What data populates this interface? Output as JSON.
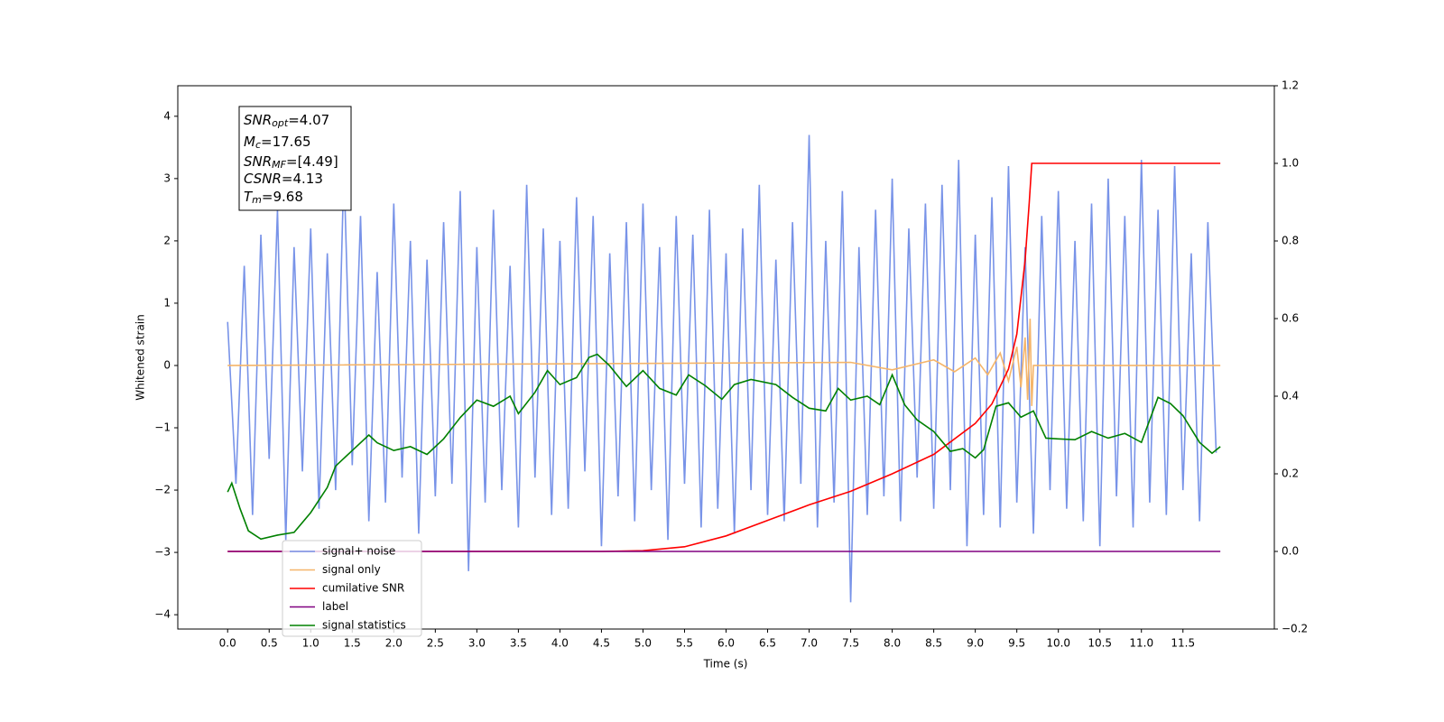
{
  "chart_data": {
    "type": "line",
    "xlabel": "Time (s)",
    "ylabel": "Whitened strain",
    "xlim": [
      -0.6,
      12.6
    ],
    "ylim": [
      -4.23,
      4.49
    ],
    "y2lim": [
      -0.2,
      1.2
    ],
    "xticks": [
      {
        "value": 0,
        "label": "0.0"
      },
      0.5,
      {
        "value": 1,
        "label": "1.0"
      },
      1.5,
      {
        "value": 2,
        "label": "2.0"
      },
      2.5,
      {
        "value": 3,
        "label": "3.0"
      },
      3.5,
      {
        "value": 4,
        "label": "4.0"
      },
      4.5,
      {
        "value": 5,
        "label": "5.0"
      },
      5.5,
      {
        "value": 6,
        "label": "6.0"
      },
      6.5,
      {
        "value": 7,
        "label": "7.0"
      },
      7.5,
      {
        "value": 8,
        "label": "8.0"
      },
      8.5,
      {
        "value": 9,
        "label": "9.0"
      },
      9.5,
      {
        "value": 10,
        "label": "10.0"
      },
      10.5,
      {
        "value": 11,
        "label": "11.0"
      },
      11.5
    ],
    "yticks": [
      {
        "value": -4,
        "label": "−4"
      },
      {
        "value": -3,
        "label": "−3"
      },
      {
        "value": -2,
        "label": "−2"
      },
      {
        "value": -1,
        "label": "−1"
      },
      0,
      1,
      2,
      3,
      4
    ],
    "y2ticks": [
      {
        "value": -0.2,
        "label": "−0.2"
      },
      {
        "value": 0,
        "label": "0.0"
      },
      0.2,
      0.4,
      0.6,
      0.8,
      {
        "value": 1,
        "label": "1.0"
      },
      1.2
    ],
    "legend": "lower left",
    "annotation": [
      {
        "main": "SNR",
        "sub": "opt",
        "text": "=4.07"
      },
      {
        "main": "M",
        "sub": "c",
        "text": "=17.65"
      },
      {
        "main": "SNR",
        "sub": "MF",
        "text": "=[4.49]"
      },
      {
        "main": "CSNR",
        "text": "=4.13"
      },
      {
        "main": "T",
        "sub": "m",
        "text": "=9.68"
      }
    ],
    "series": [
      {
        "name": "signal+ noise",
        "color": "#7893e8",
        "axis": "y",
        "x": [
          0,
          0.1,
          0.2,
          0.3,
          0.4,
          0.5,
          0.6,
          0.7,
          0.8,
          0.9,
          1,
          1.1,
          1.2,
          1.3,
          1.4,
          1.5,
          1.6,
          1.7,
          1.8,
          1.9,
          2,
          2.1,
          2.2,
          2.3,
          2.4,
          2.5,
          2.6,
          2.7,
          2.8,
          2.9,
          3,
          3.1,
          3.2,
          3.3,
          3.4,
          3.5,
          3.6,
          3.7,
          3.8,
          3.9,
          4,
          4.1,
          4.2,
          4.3,
          4.4,
          4.5,
          4.6,
          4.7,
          4.8,
          4.9,
          5,
          5.1,
          5.2,
          5.3,
          5.4,
          5.5,
          5.6,
          5.7,
          5.8,
          5.9,
          6,
          6.1,
          6.2,
          6.3,
          6.4,
          6.5,
          6.6,
          6.7,
          6.8,
          6.9,
          7,
          7.1,
          7.2,
          7.3,
          7.4,
          7.5,
          7.6,
          7.7,
          7.8,
          7.9,
          8,
          8.1,
          8.2,
          8.3,
          8.4,
          8.5,
          8.6,
          8.7,
          8.8,
          8.9,
          9,
          9.1,
          9.2,
          9.3,
          9.4,
          9.5,
          9.6,
          9.7,
          9.8,
          9.9,
          10,
          10.1,
          10.2,
          10.3,
          10.4,
          10.5,
          10.6,
          10.7,
          10.8,
          10.9,
          11,
          11.1,
          11.2,
          11.3,
          11.4,
          11.5,
          11.6,
          11.7,
          11.8,
          11.9
        ],
        "values": [
          0.7,
          -1.9,
          1.6,
          -2.4,
          2.1,
          -1.5,
          2.5,
          -2.8,
          1.9,
          -1.7,
          2.2,
          -2.3,
          1.8,
          -2.0,
          3.2,
          -1.6,
          2.4,
          -2.5,
          1.5,
          -2.2,
          2.6,
          -1.8,
          2.0,
          -2.7,
          1.7,
          -2.1,
          2.3,
          -1.9,
          2.8,
          -3.3,
          1.9,
          -2.2,
          2.5,
          -2.0,
          1.6,
          -2.6,
          2.9,
          -1.8,
          2.2,
          -2.4,
          2.0,
          -2.3,
          2.7,
          -1.7,
          2.4,
          -2.9,
          1.8,
          -2.1,
          2.3,
          -2.5,
          2.6,
          -2.0,
          1.9,
          -2.8,
          2.4,
          -1.9,
          2.1,
          -2.6,
          2.5,
          -2.3,
          1.8,
          -2.7,
          2.2,
          -2.0,
          2.9,
          -2.4,
          1.7,
          -2.5,
          2.3,
          -1.9,
          3.7,
          -2.6,
          2.0,
          -2.2,
          2.8,
          -3.8,
          1.9,
          -2.4,
          2.5,
          -2.1,
          3.0,
          -2.5,
          2.2,
          -1.8,
          2.6,
          -2.3,
          2.9,
          -2.0,
          3.3,
          -2.9,
          2.1,
          -2.4,
          2.7,
          -2.6,
          3.2,
          -2.2,
          1.9,
          -2.7,
          2.4,
          -2.0,
          2.8,
          -2.3,
          2.0,
          -2.5,
          2.6,
          -2.9,
          3.0,
          -2.1,
          2.4,
          -2.6,
          3.3,
          -2.2,
          2.5,
          -2.4,
          3.2,
          -2.0,
          1.8,
          -2.5,
          2.3,
          -1.4
        ]
      },
      {
        "name": "signal only",
        "color": "#f5b56a",
        "axis": "y",
        "x": [
          0,
          7.5,
          8.0,
          8.5,
          8.75,
          9.0,
          9.15,
          9.3,
          9.4,
          9.5,
          9.55,
          9.6,
          9.63,
          9.66,
          9.68,
          9.7,
          11.95
        ],
        "values": [
          0,
          0.05,
          -0.07,
          0.09,
          -0.1,
          0.12,
          -0.15,
          0.2,
          -0.25,
          0.3,
          -0.35,
          0.45,
          -0.55,
          0.75,
          -0.65,
          0,
          0
        ]
      },
      {
        "name": "cumilative SNR",
        "color": "#ff0000",
        "axis": "y2",
        "x": [
          0,
          4.5,
          5.0,
          5.5,
          6.0,
          6.5,
          7.0,
          7.5,
          8.0,
          8.5,
          9.0,
          9.2,
          9.4,
          9.5,
          9.6,
          9.65,
          9.68,
          11.95
        ],
        "values": [
          0,
          0,
          0.002,
          0.012,
          0.04,
          0.08,
          0.12,
          0.155,
          0.2,
          0.25,
          0.33,
          0.38,
          0.47,
          0.56,
          0.75,
          0.9,
          1.0,
          1.0
        ]
      },
      {
        "name": "label",
        "color": "#800080",
        "axis": "y2",
        "x": [
          0,
          11.95
        ],
        "values": [
          0,
          0
        ]
      },
      {
        "name": "signal statistics",
        "color": "#008000",
        "axis": "y2",
        "x": [
          0,
          0.05,
          0.15,
          0.25,
          0.4,
          0.6,
          0.8,
          1.0,
          1.2,
          1.3,
          1.5,
          1.7,
          1.8,
          2.0,
          2.2,
          2.4,
          2.6,
          2.8,
          3.0,
          3.2,
          3.4,
          3.5,
          3.7,
          3.85,
          4.0,
          4.2,
          4.35,
          4.45,
          4.6,
          4.8,
          5.0,
          5.2,
          5.4,
          5.55,
          5.75,
          5.95,
          6.1,
          6.3,
          6.6,
          6.8,
          7.0,
          7.2,
          7.35,
          7.5,
          7.7,
          7.85,
          8.0,
          8.15,
          8.3,
          8.5,
          8.7,
          8.85,
          9.0,
          9.1,
          9.25,
          9.4,
          9.55,
          9.7,
          9.85,
          10.0,
          10.2,
          10.4,
          10.6,
          10.8,
          11.0,
          11.2,
          11.35,
          11.5,
          11.7,
          11.85,
          11.95
        ],
        "values": [
          0.153,
          0.176,
          0.11,
          0.053,
          0.032,
          0.042,
          0.049,
          0.1,
          0.165,
          0.22,
          0.26,
          0.3,
          0.28,
          0.26,
          0.27,
          0.25,
          0.29,
          0.345,
          0.39,
          0.374,
          0.4,
          0.355,
          0.41,
          0.466,
          0.43,
          0.448,
          0.5,
          0.508,
          0.478,
          0.425,
          0.466,
          0.42,
          0.403,
          0.455,
          0.427,
          0.392,
          0.43,
          0.443,
          0.43,
          0.397,
          0.369,
          0.362,
          0.42,
          0.39,
          0.4,
          0.378,
          0.455,
          0.378,
          0.339,
          0.309,
          0.258,
          0.265,
          0.241,
          0.262,
          0.374,
          0.383,
          0.346,
          0.362,
          0.292,
          0.29,
          0.288,
          0.309,
          0.292,
          0.304,
          0.281,
          0.397,
          0.381,
          0.35,
          0.281,
          0.253,
          0.27
        ]
      }
    ]
  }
}
